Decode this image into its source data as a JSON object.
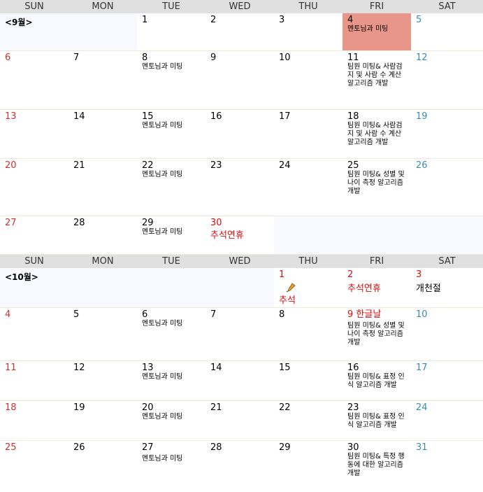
{
  "weekdays": [
    "SUN",
    "MON",
    "TUE",
    "WED",
    "THU",
    "FRI",
    "SAT"
  ],
  "sep": {
    "label": "<9월>",
    "row1": [
      "1",
      "2",
      "3",
      "4",
      "5"
    ],
    "row2": [
      "6",
      "7",
      "8",
      "9",
      "10",
      "11",
      "12"
    ],
    "row3": [
      "13",
      "14",
      "15",
      "16",
      "17",
      "18",
      "19"
    ],
    "row4": [
      "20",
      "21",
      "22",
      "23",
      "24",
      "25",
      "26"
    ],
    "row5": [
      "27",
      "28",
      "29",
      "30"
    ],
    "holiday_30": "추석연휴"
  },
  "oct": {
    "label": "<10월>",
    "row1": [
      "1",
      "2",
      "3"
    ],
    "holiday_1": "추석",
    "holiday_2": "추석연휴",
    "holiday_3": "개천절",
    "row2": [
      "4",
      "5",
      "6",
      "7",
      "8",
      "9 한글날",
      "10"
    ],
    "row3": [
      "11",
      "12",
      "13",
      "14",
      "15",
      "16",
      "17"
    ],
    "row4": [
      "18",
      "19",
      "20",
      "21",
      "22",
      "23",
      "24"
    ],
    "row5": [
      "25",
      "26",
      "27",
      "28",
      "29",
      "30",
      "31"
    ]
  },
  "events": {
    "mentor": "멘토님과 미팅",
    "team_people": "팀원 미팅& 사람검지 및 사람 수 계산 알고리즘 개발",
    "team_gender": "팀원 미팅& 성별 및 나이 측정 알고리즘 개발",
    "team_face": "팀원 미팅& 표정 인식 알고리즘 개발",
    "team_action": "팀원 미팅& 특정 행동에 대한 알고리즘 개발"
  },
  "colors": {
    "sunday": "#d03030",
    "saturday": "#3a8ab4",
    "holiday": "#d01010",
    "highlight": "#e8958a"
  }
}
